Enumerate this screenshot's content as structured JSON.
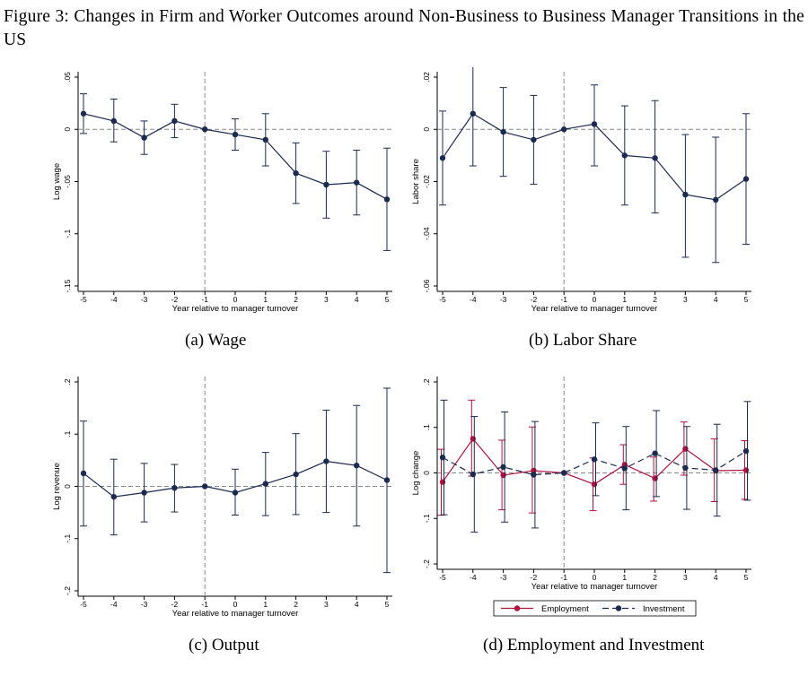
{
  "figure": {
    "title": "Figure 3:  Changes in Firm and Worker Outcomes around Non-Business to Business Manager Transitions in the US"
  },
  "colors": {
    "navy": "#1a2a50",
    "maroon": "#b0123c",
    "grid": "#888888"
  },
  "chart_data": [
    {
      "id": "a",
      "caption": "(a) Wage",
      "type": "line",
      "xlabel": "Year relative to manager turnover",
      "ylabel": "Log wage",
      "x": [
        -5,
        -4,
        -3,
        -2,
        -1,
        0,
        1,
        2,
        3,
        4,
        5
      ],
      "ylim": [
        -0.15,
        0.05
      ],
      "yticks": [
        0.05,
        0,
        -0.05,
        -0.1,
        -0.15
      ],
      "ytick_labels": [
        ".05",
        "0",
        "-.05",
        "-.1",
        "-.15"
      ],
      "series": [
        {
          "name": "",
          "color": "#1a2a50",
          "values": [
            0.015,
            0.008,
            -0.008,
            0.008,
            0.0,
            -0.005,
            -0.01,
            -0.042,
            -0.053,
            -0.051,
            -0.067
          ],
          "ci_low": [
            -0.004,
            -0.012,
            -0.024,
            -0.008,
            0.0,
            -0.02,
            -0.035,
            -0.071,
            -0.085,
            -0.082,
            -0.116
          ],
          "ci_high": [
            0.034,
            0.029,
            0.008,
            0.024,
            0.0,
            0.01,
            0.015,
            -0.013,
            -0.021,
            -0.02,
            -0.018
          ]
        }
      ]
    },
    {
      "id": "b",
      "caption": "(b) Labor Share",
      "type": "line",
      "xlabel": "Year relative to manager turnover",
      "ylabel": "Labor share",
      "x": [
        -5,
        -4,
        -3,
        -2,
        -1,
        0,
        1,
        2,
        3,
        4,
        5
      ],
      "ylim": [
        -0.06,
        0.02
      ],
      "yticks": [
        0.02,
        0,
        -0.02,
        -0.04,
        -0.06
      ],
      "ytick_labels": [
        ".02",
        "0",
        "-.02",
        "-.04",
        "-.06"
      ],
      "series": [
        {
          "name": "",
          "color": "#1a2a50",
          "values": [
            -0.011,
            0.006,
            -0.001,
            -0.004,
            0.0,
            0.002,
            -0.01,
            -0.011,
            -0.025,
            -0.027,
            -0.019
          ],
          "ci_low": [
            -0.029,
            -0.014,
            -0.018,
            -0.021,
            0.0,
            -0.014,
            -0.029,
            -0.032,
            -0.049,
            -0.051,
            -0.044
          ],
          "ci_high": [
            0.007,
            0.025,
            0.016,
            0.013,
            0.0,
            0.017,
            0.009,
            0.011,
            -0.002,
            -0.003,
            0.006
          ]
        }
      ]
    },
    {
      "id": "c",
      "caption": "(c) Output",
      "type": "line",
      "xlabel": "Year relative to manager turnover",
      "ylabel": "Log revenue",
      "x": [
        -5,
        -4,
        -3,
        -2,
        -1,
        0,
        1,
        2,
        3,
        4,
        5
      ],
      "ylim": [
        -0.2,
        0.2
      ],
      "yticks": [
        0.2,
        0.1,
        0,
        -0.1,
        -0.2
      ],
      "ytick_labels": [
        ".2",
        ".1",
        "0",
        "-.1",
        "-.2"
      ],
      "series": [
        {
          "name": "",
          "color": "#1a2a50",
          "values": [
            0.025,
            -0.02,
            -0.012,
            -0.003,
            0.0,
            -0.012,
            0.005,
            0.023,
            0.048,
            0.04,
            0.012
          ],
          "ci_low": [
            -0.076,
            -0.093,
            -0.068,
            -0.049,
            0.0,
            -0.055,
            -0.056,
            -0.054,
            -0.05,
            -0.076,
            -0.165
          ],
          "ci_high": [
            0.125,
            0.052,
            0.044,
            0.042,
            0.0,
            0.033,
            0.065,
            0.101,
            0.146,
            0.155,
            0.188
          ]
        }
      ]
    },
    {
      "id": "d",
      "caption": "(d) Employment and Investment",
      "type": "line",
      "xlabel": "Year relative to manager turnover",
      "ylabel": "Log change",
      "x": [
        -5,
        -4,
        -3,
        -2,
        -1,
        0,
        1,
        2,
        3,
        4,
        5
      ],
      "ylim": [
        -0.2,
        0.2
      ],
      "yticks": [
        0.2,
        0.1,
        0,
        -0.1,
        -0.2
      ],
      "ytick_labels": [
        ".2",
        ".1",
        "0",
        "-.1",
        "-.2"
      ],
      "legend": "bottom",
      "series": [
        {
          "name": "Employment",
          "color": "#b0123c",
          "dash": false,
          "values": [
            -0.02,
            0.075,
            -0.005,
            0.005,
            0.0,
            -0.025,
            0.018,
            -0.012,
            0.053,
            0.005,
            0.006
          ],
          "ci_low": [
            -0.093,
            -0.007,
            -0.081,
            -0.088,
            0.0,
            -0.083,
            -0.025,
            -0.062,
            -0.005,
            -0.063,
            -0.058
          ],
          "ci_high": [
            0.052,
            0.16,
            0.072,
            0.101,
            0.0,
            0.033,
            0.062,
            0.035,
            0.112,
            0.075,
            0.071
          ]
        },
        {
          "name": "Investment",
          "color": "#1a2a50",
          "dash": true,
          "values": [
            0.034,
            -0.003,
            0.013,
            -0.004,
            0.0,
            0.03,
            0.01,
            0.043,
            0.011,
            0.006,
            0.048
          ],
          "ci_low": [
            -0.092,
            -0.13,
            -0.108,
            -0.121,
            0.0,
            -0.05,
            -0.081,
            -0.052,
            -0.08,
            -0.095,
            -0.06
          ],
          "ci_high": [
            0.16,
            0.124,
            0.134,
            0.113,
            0.0,
            0.11,
            0.102,
            0.137,
            0.102,
            0.107,
            0.157
          ]
        }
      ]
    }
  ]
}
